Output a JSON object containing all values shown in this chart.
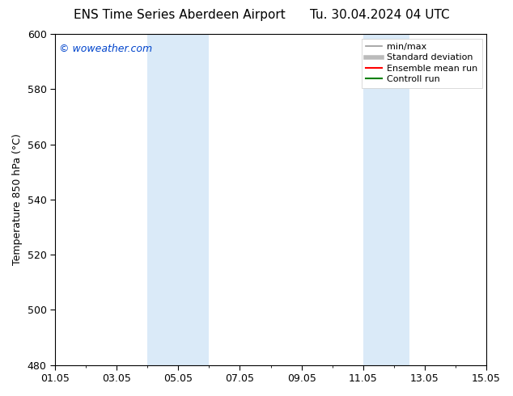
{
  "title_left": "ENS Time Series Aberdeen Airport",
  "title_right": "Tu. 30.04.2024 04 UTC",
  "ylabel": "Temperature 850 hPa (°C)",
  "ylim": [
    480,
    600
  ],
  "yticks": [
    480,
    500,
    520,
    540,
    560,
    580,
    600
  ],
  "xtick_labels": [
    "01.05",
    "03.05",
    "05.05",
    "07.05",
    "09.05",
    "11.05",
    "13.05",
    "15.05"
  ],
  "xtick_days": [
    1,
    3,
    5,
    7,
    9,
    11,
    13,
    15
  ],
  "shaded_bands": [
    {
      "day_start": 4.0,
      "day_end": 6.0,
      "color": "#daeaf8"
    },
    {
      "day_start": 11.0,
      "day_end": 12.5,
      "color": "#daeaf8"
    }
  ],
  "watermark": "© woweather.com",
  "watermark_color": "#0044cc",
  "legend_items": [
    {
      "label": "min/max",
      "color": "#999999",
      "lw": 1.2
    },
    {
      "label": "Standard deviation",
      "color": "#bbbbbb",
      "lw": 4
    },
    {
      "label": "Ensemble mean run",
      "color": "#ff0000",
      "lw": 1.5
    },
    {
      "label": "Controll run",
      "color": "#008000",
      "lw": 1.5
    }
  ],
  "bg_color": "#ffffff",
  "plot_bg_color": "#ffffff",
  "title_fontsize": 11,
  "ylabel_fontsize": 9,
  "tick_fontsize": 9,
  "legend_fontsize": 8,
  "watermark_fontsize": 9
}
